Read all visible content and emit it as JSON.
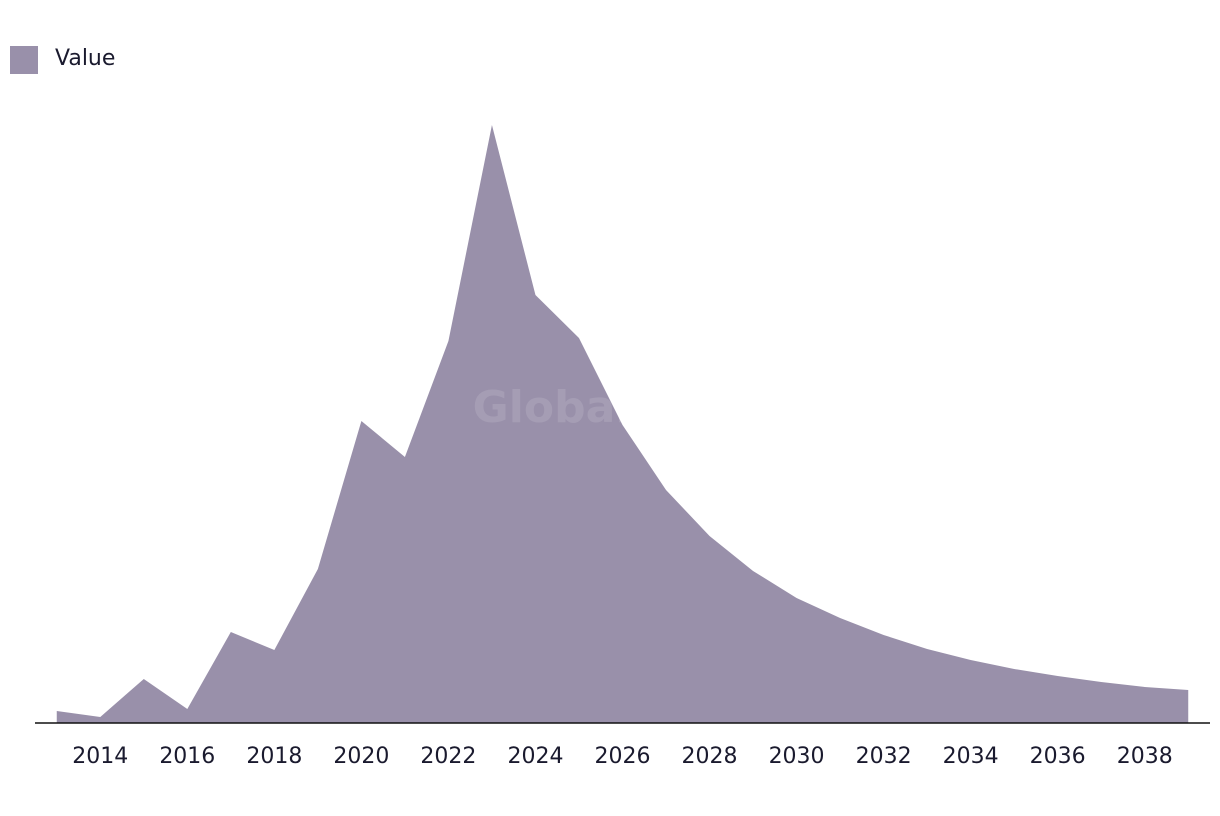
{
  "chart_data": {
    "type": "area",
    "watermark": "GlobalData",
    "x": [
      2013,
      2014,
      2015,
      2016,
      2017,
      2018,
      2019,
      2020,
      2021,
      2022,
      2023,
      2024,
      2025,
      2026,
      2027,
      2028,
      2029,
      2030,
      2031,
      2032,
      2033,
      2034,
      2035,
      2036,
      2037,
      2038,
      2039
    ],
    "series": [
      {
        "name": "Value",
        "color": "#9990aa",
        "values": [
          12,
          6,
          44,
          14,
          91,
          73,
          154,
          302,
          266,
          382,
          598,
          428,
          385,
          298,
          233,
          187,
          152,
          125,
          105,
          88,
          74,
          63,
          54,
          47,
          41,
          36,
          33
        ]
      }
    ],
    "xlim": [
      2012.5,
      2039.5
    ],
    "xticks": [
      2014,
      2016,
      2018,
      2020,
      2022,
      2024,
      2026,
      2028,
      2030,
      2032,
      2034,
      2036,
      2038
    ],
    "ylim": [
      0,
      600
    ],
    "legend": "top-left"
  }
}
